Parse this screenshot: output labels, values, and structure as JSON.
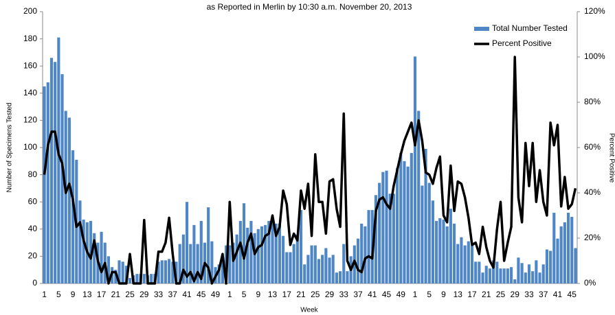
{
  "chart_data": {
    "type": "bar",
    "title": "as Reported in Merlin by  10:30 a.m. November 20, 2013",
    "x_label": "Week",
    "y_label": "Number of Specimens Tested",
    "y2_label": "Percent Positive",
    "categories": [
      "1",
      null,
      null,
      null,
      "5",
      null,
      null,
      null,
      "9",
      null,
      null,
      null,
      "13",
      null,
      null,
      null,
      "17",
      null,
      null,
      null,
      "21",
      null,
      null,
      null,
      "25",
      null,
      null,
      null,
      "29",
      null,
      null,
      null,
      "33",
      null,
      null,
      null,
      "37",
      null,
      null,
      null,
      "41",
      null,
      null,
      null,
      "45",
      null,
      null,
      null,
      "49",
      null,
      null,
      null,
      "1",
      null,
      null,
      null,
      "5",
      null,
      null,
      null,
      "9",
      null,
      null,
      null,
      "13",
      null,
      null,
      null,
      "17",
      null,
      null,
      null,
      "21",
      null,
      null,
      null,
      "25",
      null,
      null,
      null,
      "29",
      null,
      null,
      null,
      "33",
      null,
      null,
      null,
      "37",
      null,
      null,
      null,
      "41",
      null,
      null,
      null,
      "45",
      null,
      null,
      null,
      "49",
      null,
      null,
      null,
      "1",
      null,
      null,
      null,
      "5",
      null,
      null,
      null,
      "9",
      null,
      null,
      null,
      "13",
      null,
      null,
      null,
      "17",
      null,
      null,
      null,
      "21",
      null,
      null,
      null,
      "25",
      null,
      null,
      null,
      "29",
      null,
      null,
      null,
      "33",
      null,
      null,
      null,
      "37",
      null,
      null,
      null,
      "41",
      null,
      null,
      null,
      "45",
      null
    ],
    "series": [
      {
        "name": "Total Number Tested",
        "type": "bar",
        "color": "#4f86c6",
        "values": [
          145,
          148,
          166,
          163,
          181,
          154,
          127,
          122,
          98,
          91,
          61,
          47,
          45,
          46,
          37,
          30,
          38,
          30,
          20,
          12,
          10,
          17,
          16,
          13,
          4,
          6,
          7,
          7,
          7,
          6,
          7,
          7,
          16,
          17,
          17,
          18,
          16,
          16,
          29,
          36,
          60,
          29,
          43,
          29,
          46,
          30,
          56,
          31,
          12,
          14,
          18,
          28,
          28,
          30,
          36,
          46,
          59,
          41,
          46,
          37,
          40,
          42,
          43,
          46,
          45,
          44,
          44,
          35,
          23,
          23,
          29,
          36,
          54,
          14,
          21,
          28,
          28,
          18,
          21,
          26,
          19,
          21,
          8,
          9,
          29,
          9,
          20,
          28,
          33,
          44,
          42,
          54,
          54,
          65,
          74,
          82,
          83,
          66,
          66,
          85,
          96,
          90,
          86,
          96,
          167,
          127,
          72,
          99,
          74,
          61,
          46,
          48,
          47,
          42,
          55,
          44,
          29,
          34,
          28,
          31,
          28,
          16,
          16,
          8,
          13,
          11,
          17,
          16,
          11,
          11,
          11,
          12,
          3,
          19,
          15,
          8,
          14,
          9,
          17,
          8,
          14,
          25,
          24,
          52,
          33,
          42,
          45,
          52,
          49,
          26
        ]
      },
      {
        "name": "Percent Positive",
        "type": "line",
        "axis": "y2",
        "color": "#000000",
        "values": [
          48,
          61,
          67,
          67,
          57,
          53,
          40,
          44,
          37,
          25,
          27,
          19,
          14,
          11,
          19,
          10,
          5,
          9,
          0,
          5,
          5,
          0,
          0,
          0,
          13,
          0,
          0,
          0,
          28,
          0,
          0,
          0,
          14,
          14,
          18,
          29,
          13,
          0,
          0,
          6,
          3,
          5,
          1,
          5,
          2,
          9,
          7,
          0,
          3,
          6,
          13,
          0,
          36,
          10,
          14,
          18,
          11,
          18,
          22,
          13,
          16,
          17,
          21,
          22,
          30,
          21,
          25,
          41,
          35,
          17,
          22,
          19,
          41,
          33,
          44,
          21,
          57,
          36,
          36,
          22,
          45,
          46,
          33,
          25,
          75,
          10,
          6,
          10,
          6,
          5,
          11,
          12,
          11,
          32,
          37,
          38,
          35,
          33,
          43,
          50,
          57,
          63,
          67,
          71,
          61,
          72,
          63,
          49,
          48,
          44,
          51,
          56,
          30,
          27,
          52,
          32,
          45,
          44,
          38,
          29,
          17,
          18,
          13,
          25,
          16,
          10,
          7,
          24,
          36,
          10,
          18,
          25,
          100,
          38,
          27,
          62,
          43,
          62,
          36,
          50,
          36,
          30,
          71,
          61,
          70,
          34,
          47,
          33,
          35,
          42
        ]
      }
    ],
    "ylim": [
      0,
      200
    ],
    "yticks": [
      0,
      20,
      40,
      60,
      80,
      100,
      120,
      140,
      160,
      180,
      200
    ],
    "y2lim": [
      0,
      120
    ],
    "y2ticks": [
      {
        "value": 0,
        "label": "0%"
      },
      {
        "value": 20,
        "label": "20%"
      },
      {
        "value": 40,
        "label": "40%"
      },
      {
        "value": 60,
        "label": "60%"
      },
      {
        "value": 80,
        "label": "80%"
      },
      {
        "value": 100,
        "label": "100%"
      },
      {
        "value": 120,
        "label": "120%"
      }
    ],
    "legend": "upper right"
  }
}
